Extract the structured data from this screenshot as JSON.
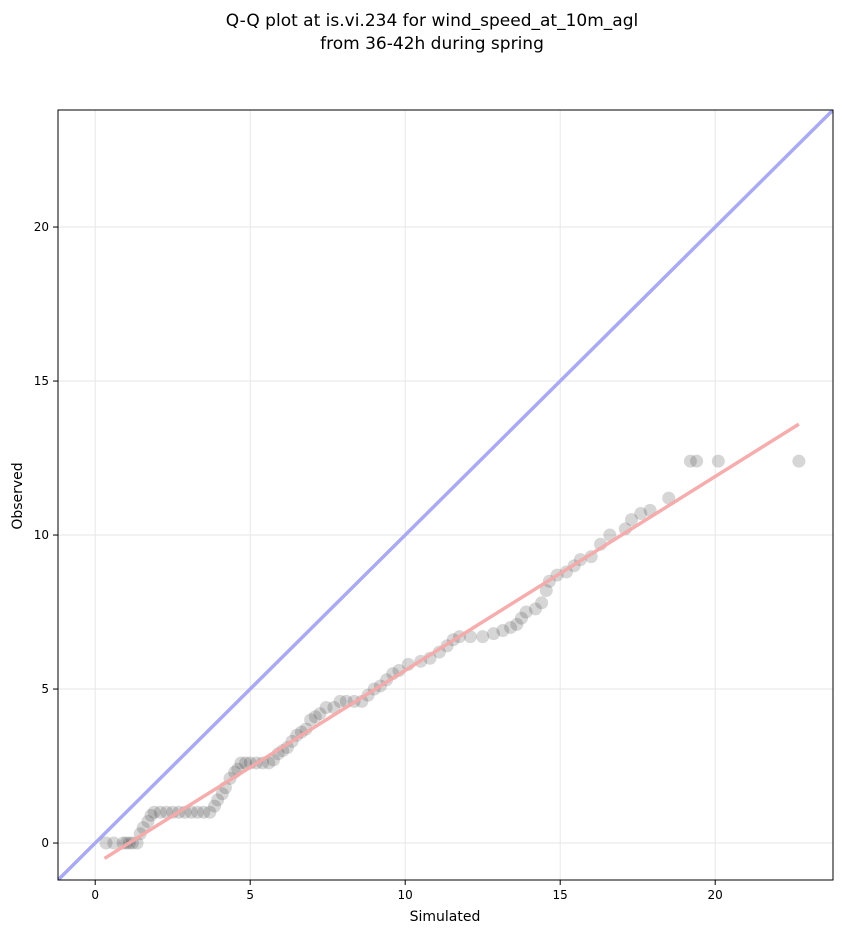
{
  "chart_data": {
    "type": "scatter",
    "title": "Q-Q plot at is.vi.234 for wind_speed_at_10m_agl",
    "subtitle": "from 36-42h during spring",
    "xlabel": "Simulated",
    "ylabel": "Observed",
    "xlim": [
      -1.2,
      23.8
    ],
    "ylim": [
      -1.2,
      23.8
    ],
    "xticks": [
      0,
      5,
      10,
      15,
      20
    ],
    "yticks": [
      0,
      5,
      10,
      15,
      20
    ],
    "grid": true,
    "point_color": "#333333",
    "identity_line": {
      "color": "#aaaaf2",
      "from": [
        -1.2,
        -1.2
      ],
      "to": [
        23.8,
        23.8
      ]
    },
    "fit_line": {
      "color": "#f5a9a9",
      "from": [
        0.3,
        -0.5
      ],
      "to": [
        22.7,
        13.6
      ]
    },
    "points": [
      [
        0.35,
        0.0
      ],
      [
        0.6,
        0.0
      ],
      [
        0.9,
        0.0
      ],
      [
        1.0,
        0.0
      ],
      [
        1.1,
        0.0
      ],
      [
        1.2,
        0.0
      ],
      [
        1.35,
        0.0
      ],
      [
        1.45,
        0.3
      ],
      [
        1.55,
        0.5
      ],
      [
        1.7,
        0.7
      ],
      [
        1.8,
        0.9
      ],
      [
        1.9,
        1.0
      ],
      [
        2.1,
        1.0
      ],
      [
        2.3,
        1.0
      ],
      [
        2.5,
        1.0
      ],
      [
        2.7,
        1.0
      ],
      [
        2.9,
        1.0
      ],
      [
        3.1,
        1.0
      ],
      [
        3.3,
        1.0
      ],
      [
        3.5,
        1.0
      ],
      [
        3.7,
        1.0
      ],
      [
        3.85,
        1.2
      ],
      [
        3.95,
        1.4
      ],
      [
        4.1,
        1.6
      ],
      [
        4.2,
        1.8
      ],
      [
        4.35,
        2.1
      ],
      [
        4.5,
        2.3
      ],
      [
        4.6,
        2.4
      ],
      [
        4.7,
        2.6
      ],
      [
        4.85,
        2.6
      ],
      [
        5.0,
        2.6
      ],
      [
        5.2,
        2.6
      ],
      [
        5.4,
        2.6
      ],
      [
        5.6,
        2.6
      ],
      [
        5.75,
        2.7
      ],
      [
        5.9,
        2.9
      ],
      [
        6.05,
        3.0
      ],
      [
        6.2,
        3.1
      ],
      [
        6.35,
        3.3
      ],
      [
        6.5,
        3.5
      ],
      [
        6.65,
        3.6
      ],
      [
        6.8,
        3.7
      ],
      [
        6.95,
        4.0
      ],
      [
        7.1,
        4.1
      ],
      [
        7.25,
        4.2
      ],
      [
        7.45,
        4.4
      ],
      [
        7.7,
        4.4
      ],
      [
        7.9,
        4.6
      ],
      [
        8.1,
        4.6
      ],
      [
        8.35,
        4.6
      ],
      [
        8.6,
        4.6
      ],
      [
        8.8,
        4.8
      ],
      [
        9.0,
        5.0
      ],
      [
        9.2,
        5.1
      ],
      [
        9.4,
        5.3
      ],
      [
        9.6,
        5.5
      ],
      [
        9.8,
        5.6
      ],
      [
        10.1,
        5.8
      ],
      [
        10.5,
        5.9
      ],
      [
        10.8,
        6.0
      ],
      [
        11.1,
        6.2
      ],
      [
        11.35,
        6.4
      ],
      [
        11.55,
        6.6
      ],
      [
        11.75,
        6.7
      ],
      [
        12.1,
        6.7
      ],
      [
        12.5,
        6.7
      ],
      [
        12.85,
        6.8
      ],
      [
        13.15,
        6.9
      ],
      [
        13.4,
        7.0
      ],
      [
        13.6,
        7.1
      ],
      [
        13.75,
        7.3
      ],
      [
        13.9,
        7.5
      ],
      [
        14.2,
        7.6
      ],
      [
        14.4,
        7.8
      ],
      [
        14.55,
        8.2
      ],
      [
        14.65,
        8.5
      ],
      [
        14.9,
        8.7
      ],
      [
        15.2,
        8.8
      ],
      [
        15.45,
        9.0
      ],
      [
        15.65,
        9.2
      ],
      [
        16.0,
        9.3
      ],
      [
        16.3,
        9.7
      ],
      [
        16.6,
        10.0
      ],
      [
        17.1,
        10.2
      ],
      [
        17.3,
        10.5
      ],
      [
        17.6,
        10.7
      ],
      [
        17.9,
        10.8
      ],
      [
        18.5,
        11.2
      ],
      [
        19.2,
        12.4
      ],
      [
        19.4,
        12.4
      ],
      [
        20.1,
        12.4
      ],
      [
        22.7,
        12.4
      ]
    ]
  }
}
